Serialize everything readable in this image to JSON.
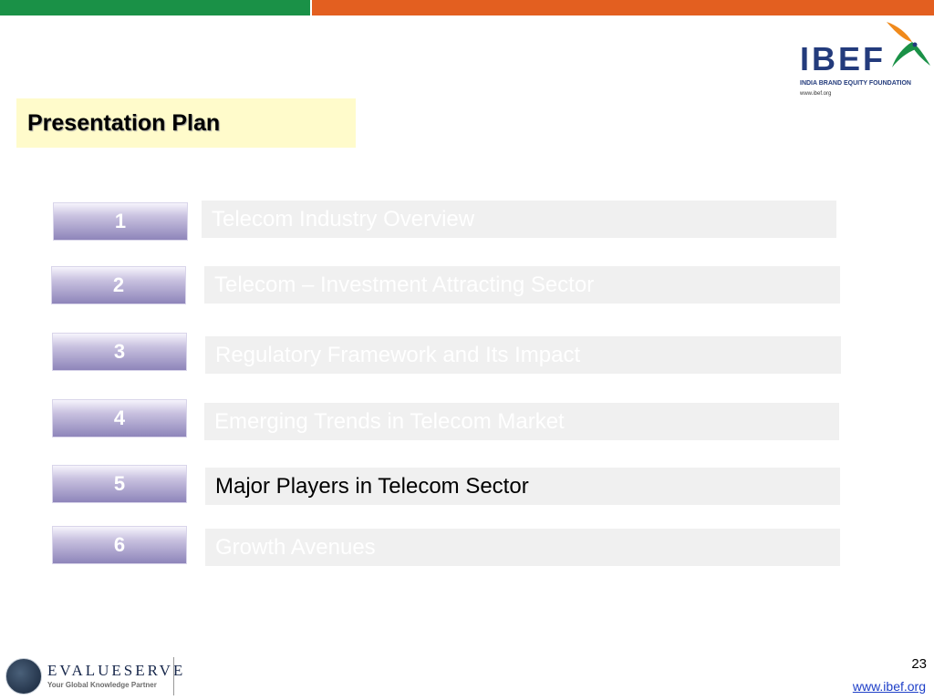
{
  "logo": {
    "word": "IBEF",
    "subtitle": "INDIA BRAND EQUITY FOUNDATION",
    "url": "www.ibef.org",
    "colors": {
      "text": "#233b7c",
      "bird_orange": "#f08a1c",
      "bird_green": "#1a9147"
    }
  },
  "header": {
    "title": "Presentation Plan"
  },
  "agenda": {
    "items": [
      {
        "number": "1",
        "label": "Telecom Industry Overview"
      },
      {
        "number": "2",
        "label": "Telecom – Investment Attracting Sector"
      },
      {
        "number": "3",
        "label": "Regulatory Framework and Its Impact"
      },
      {
        "number": "4",
        "label": "Emerging Trends in Telecom Market"
      },
      {
        "number": "5",
        "label": "Major Players in Telecom Sector"
      },
      {
        "number": "6",
        "label": "Growth Avenues"
      }
    ]
  },
  "footer": {
    "brand": "EVALUESERVE",
    "tagline": "Your Global Knowledge Partner",
    "page_number": "23",
    "link": "www.ibef.org "
  },
  "theme": {
    "green": "#1a9147",
    "orange": "#e35f20",
    "title_bg": "#fffbcb",
    "item_bg": "#f0f0f0"
  }
}
